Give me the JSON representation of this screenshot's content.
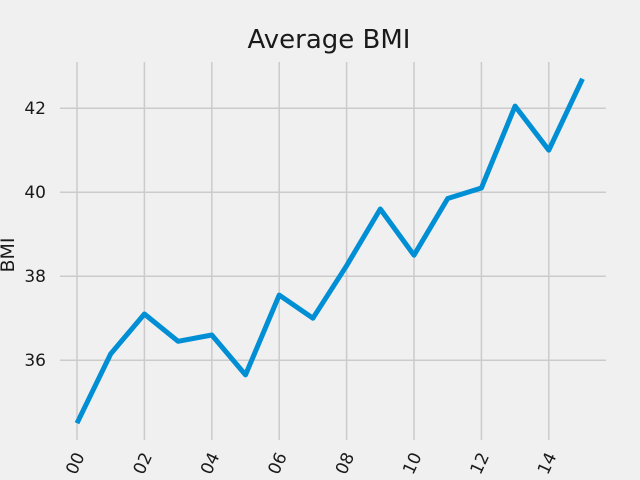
{
  "chart_data": {
    "type": "line",
    "title": "Average BMI",
    "xlabel": "",
    "ylabel": "BMI",
    "x": [
      "00",
      "01",
      "02",
      "03",
      "04",
      "05",
      "06",
      "07",
      "08",
      "09",
      "10",
      "11",
      "12",
      "13",
      "14",
      "15"
    ],
    "x_tick_labels": [
      "00",
      "02",
      "04",
      "06",
      "08",
      "10",
      "12",
      "14"
    ],
    "y_ticks": [
      36,
      38,
      40,
      42
    ],
    "ylim": [
      34.1,
      43.1
    ],
    "series": [
      {
        "values": [
          34.5,
          36.15,
          37.1,
          36.45,
          36.6,
          35.65,
          37.55,
          37.0,
          38.25,
          39.6,
          38.5,
          39.85,
          40.1,
          42.05,
          41.0,
          42.7
        ]
      }
    ],
    "grid": true,
    "line_color": "#008fd5",
    "style": "fivethirtyeight"
  }
}
